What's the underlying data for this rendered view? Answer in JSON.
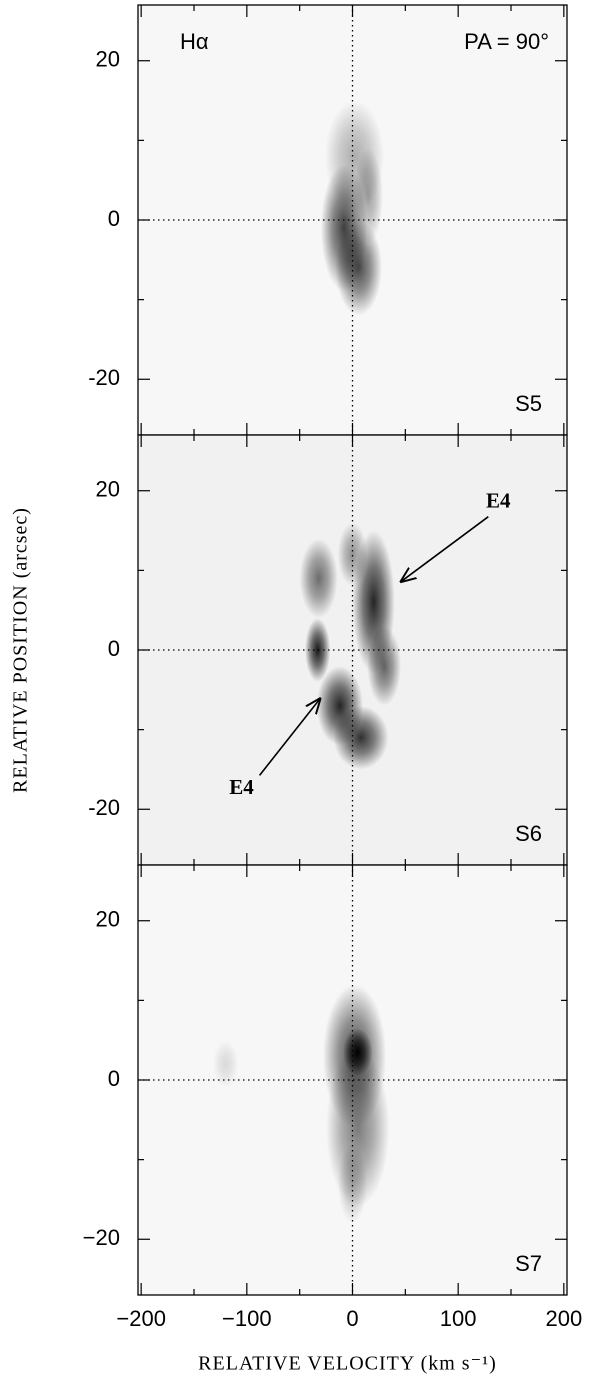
{
  "chart_data": [
    {
      "type": "image",
      "line": "Hα",
      "pa": "PA = 90°",
      "label": "S5",
      "xlim": [
        -203,
        203
      ],
      "ylim": [
        -27,
        27
      ],
      "xticks": [
        -200,
        -100,
        0,
        100,
        200
      ],
      "xminor": [
        -150,
        -50,
        50,
        150
      ],
      "yticks": [
        -20,
        0,
        20
      ],
      "yminor": [
        -10,
        10
      ],
      "zero_lines": true,
      "background": "#f7f7f7",
      "features": [
        {
          "v": 2,
          "p": 8,
          "dv": 28,
          "dp": 7,
          "level": 0.3
        },
        {
          "v": -8,
          "p": -1,
          "dv": 22,
          "dp": 8,
          "level": 0.75
        },
        {
          "v": 6,
          "p": -6,
          "dv": 22,
          "dp": 6,
          "level": 0.7
        },
        {
          "v": 15,
          "p": 3,
          "dv": 14,
          "dp": 6,
          "level": 0.35
        }
      ]
    },
    {
      "type": "image",
      "label": "S6",
      "ylabel": "RELATIVE POSITION (arcsec)",
      "xlim": [
        -203,
        203
      ],
      "ylim": [
        -27,
        27
      ],
      "xticks": [
        -200,
        -100,
        0,
        100,
        200
      ],
      "xminor": [
        -150,
        -50,
        50,
        150
      ],
      "yticks": [
        -20,
        0,
        20
      ],
      "yminor": [
        -10,
        10
      ],
      "zero_lines": true,
      "background": "#f1f1f1",
      "features": [
        {
          "v": 20,
          "p": 6,
          "dv": 20,
          "dp": 9,
          "level": 0.85
        },
        {
          "v": 30,
          "p": -2,
          "dv": 16,
          "dp": 5,
          "level": 0.6
        },
        {
          "v": -33,
          "p": 0,
          "dv": 12,
          "dp": 4,
          "level": 0.9
        },
        {
          "v": -32,
          "p": 9,
          "dv": 18,
          "dp": 5,
          "level": 0.55
        },
        {
          "v": -12,
          "p": -7,
          "dv": 22,
          "dp": 5,
          "level": 0.85
        },
        {
          "v": 8,
          "p": -11,
          "dv": 26,
          "dp": 4,
          "level": 0.8
        },
        {
          "v": 0,
          "p": 12,
          "dv": 14,
          "dp": 4,
          "level": 0.4
        }
      ],
      "annotations": [
        {
          "text": "E4",
          "xy": [
            45,
            8.5
          ],
          "xytext": [
            138,
            18.5
          ]
        },
        {
          "text": "E4",
          "xy": [
            -30,
            -6
          ],
          "xytext": [
            -105,
            -17.5
          ]
        }
      ]
    },
    {
      "type": "image",
      "label": "S7",
      "xlabel": "RELATIVE VELOCITY (km s⁻¹)",
      "xlim": [
        -203,
        203
      ],
      "ylim": [
        -27,
        27
      ],
      "xticks": [
        {
          "value": -200,
          "label": "−200"
        },
        {
          "value": -100,
          "label": "−100"
        },
        0,
        100,
        200
      ],
      "xminor": [
        -150,
        -50,
        50,
        150
      ],
      "yticks": [
        {
          "value": -20,
          "label": "−20"
        },
        0,
        20
      ],
      "yminor": [
        -10,
        10
      ],
      "zero_lines": true,
      "background": "#f7f7f7",
      "features": [
        {
          "v": 2,
          "p": 3,
          "dv": 30,
          "dp": 9,
          "level": 0.7
        },
        {
          "v": 5,
          "p": 3.5,
          "dv": 14,
          "dp": 3,
          "level": 1
        },
        {
          "v": 5,
          "p": -6,
          "dv": 30,
          "dp": 10,
          "level": 0.5
        },
        {
          "v": 0,
          "p": -13,
          "dv": 14,
          "dp": 5,
          "level": 0.25
        },
        {
          "v": -120,
          "p": 2,
          "dv": 12,
          "dp": 3,
          "level": 0.12
        }
      ]
    }
  ]
}
